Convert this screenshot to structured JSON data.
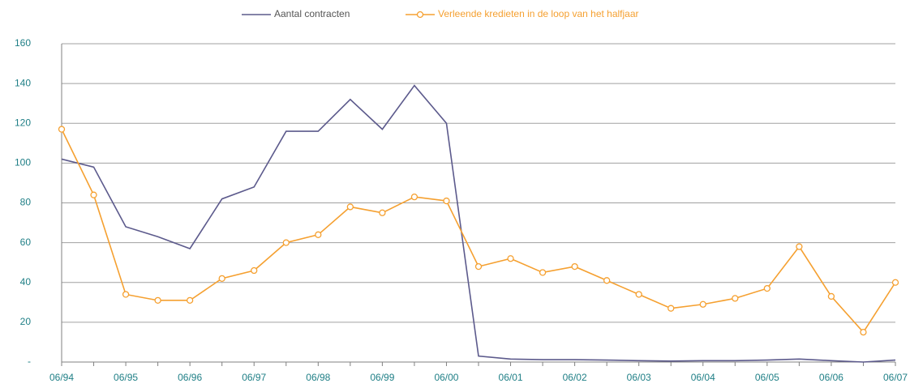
{
  "chart_data": {
    "type": "line",
    "categories": [
      "06/94",
      null,
      "06/95",
      null,
      "06/96",
      null,
      "06/97",
      null,
      "06/98",
      null,
      "06/99",
      null,
      "06/00",
      null,
      "06/01",
      null,
      "06/02",
      null,
      "06/03",
      null,
      "06/04",
      null,
      "06/05",
      null,
      "06/06",
      null,
      "06/07"
    ],
    "series": [
      {
        "name": "Aantal contracten",
        "color": "#5c5a8c",
        "marker": false,
        "values": [
          102,
          98,
          68,
          63,
          57,
          82,
          88,
          116,
          116,
          132,
          117,
          139,
          120,
          3,
          1.5,
          1.2,
          1.2,
          1,
          0.7,
          0.5,
          0.7,
          0.7,
          1,
          1.5,
          0.7,
          0,
          1
        ]
      },
      {
        "name": "Verleende kredieten in de loop van het halfjaar",
        "color": "#f5a030",
        "marker": true,
        "values": [
          117,
          84,
          34,
          31,
          31,
          42,
          46,
          60,
          64,
          78,
          75,
          83,
          81,
          48,
          52,
          45,
          48,
          41,
          34,
          27,
          29,
          32,
          37,
          58,
          33,
          15,
          40
        ]
      }
    ],
    "ylim": [
      0,
      160
    ],
    "yticks": [
      {
        "value": 0,
        "label": "-"
      },
      20,
      40,
      60,
      80,
      100,
      120,
      140,
      160
    ],
    "grid": true,
    "legend": "top"
  }
}
